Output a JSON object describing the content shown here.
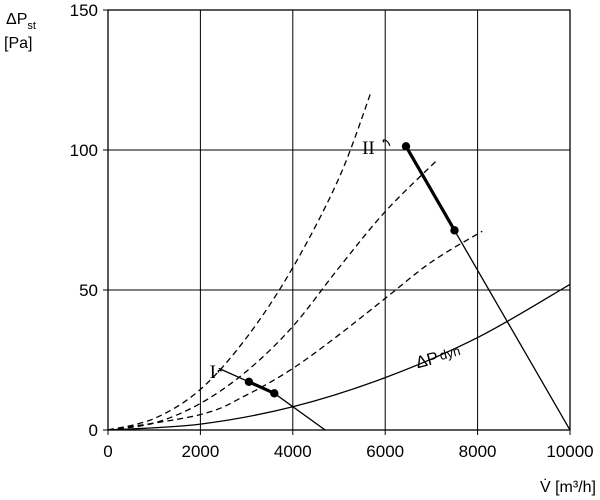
{
  "chart_data": {
    "type": "line",
    "title": "",
    "ylabel_main": "ΔP",
    "ylabel_sub": "st",
    "ylabel_unit": "[Pa]",
    "xlabel": "V̇ [m³/h]",
    "xlim": [
      0,
      10000
    ],
    "ylim": [
      0,
      150
    ],
    "x_ticks": [
      {
        "value": 0,
        "label": "0"
      },
      {
        "value": 2000,
        "label": "2000"
      },
      {
        "value": 4000,
        "label": "4000"
      },
      {
        "value": 6000,
        "label": "6000"
      },
      {
        "value": 8000,
        "label": "8000"
      },
      {
        "value": 10000,
        "label": "10000"
      }
    ],
    "y_ticks": [
      {
        "value": 0,
        "label": "0"
      },
      {
        "value": 50,
        "label": "50"
      },
      {
        "value": 100,
        "label": "100"
      },
      {
        "value": 150,
        "label": "150"
      }
    ],
    "grid": true,
    "series": [
      {
        "style": "dashed",
        "points": [
          [
            0,
            0
          ],
          [
            1000,
            4.1
          ],
          [
            2000,
            14.5
          ],
          [
            3000,
            33
          ],
          [
            4000,
            58
          ],
          [
            5000,
            90
          ],
          [
            5700,
            121
          ]
        ]
      },
      {
        "style": "dashed",
        "points": [
          [
            0,
            0
          ],
          [
            1000,
            2.5
          ],
          [
            2000,
            9.5
          ],
          [
            3000,
            21
          ],
          [
            4000,
            37
          ],
          [
            5000,
            58
          ],
          [
            6000,
            78
          ],
          [
            7100,
            96
          ]
        ]
      },
      {
        "style": "dashed",
        "points": [
          [
            0,
            0
          ],
          [
            2000,
            5.5
          ],
          [
            3000,
            12.5
          ],
          [
            4000,
            22
          ],
          [
            5000,
            34
          ],
          [
            6000,
            47
          ],
          [
            7000,
            60
          ],
          [
            8100,
            71
          ]
        ]
      },
      {
        "name": "ΔPdyn",
        "style": "solid",
        "points": [
          [
            0,
            0
          ],
          [
            2000,
            2.1
          ],
          [
            4000,
            8.3
          ],
          [
            6000,
            18.7
          ],
          [
            8000,
            33
          ],
          [
            10000,
            52
          ]
        ]
      },
      {
        "name": "I",
        "style": "solid",
        "points": [
          [
            2400,
            22
          ],
          [
            3050,
            17.2
          ],
          [
            3600,
            13.1
          ],
          [
            4700,
            0
          ]
        ]
      },
      {
        "name": "II",
        "style": "solid",
        "points": [
          [
            6450,
            101.3
          ],
          [
            7500,
            71.3
          ],
          [
            10000,
            0
          ]
        ]
      }
    ],
    "operating_ranges": [
      {
        "name": "I",
        "points": [
          [
            3050,
            17.2
          ],
          [
            3600,
            13.1
          ]
        ]
      },
      {
        "name": "II",
        "points": [
          [
            6450,
            101.3
          ],
          [
            7500,
            71.3
          ]
        ]
      }
    ],
    "curve_labels": [
      {
        "text": "I",
        "x": 2200,
        "y": 21
      },
      {
        "text": "II",
        "x": 5500,
        "y": 101
      },
      {
        "text": "ΔP",
        "sub": "dyn",
        "x": 6700,
        "y": 22
      }
    ]
  }
}
